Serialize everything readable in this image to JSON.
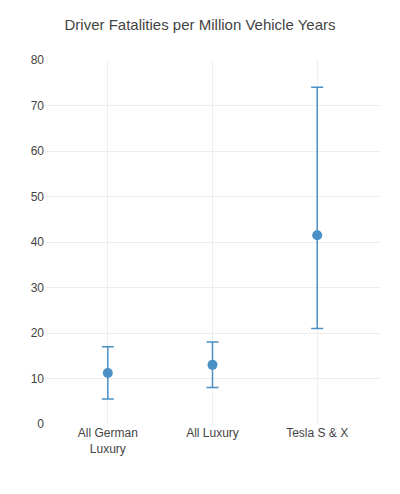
{
  "chart_data": {
    "type": "scatter",
    "title": "Driver Fatalities per Million Vehicle Years",
    "categories": [
      "All German\nLuxury",
      "All Luxury",
      "Tesla S & X"
    ],
    "values": [
      11.2,
      13.0,
      41.5
    ],
    "error_low": [
      5.5,
      8.0,
      21.0
    ],
    "error_high": [
      17.0,
      18.0,
      74.0
    ],
    "color": "#4a90c4",
    "marker": "circle",
    "ylim": [
      0,
      80
    ],
    "yticks": [
      0,
      10,
      20,
      30,
      40,
      50,
      60,
      70,
      80
    ],
    "grid": true
  }
}
